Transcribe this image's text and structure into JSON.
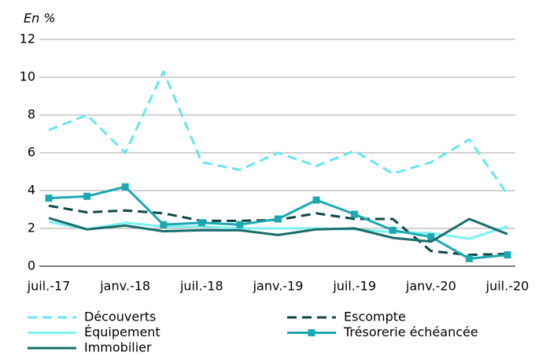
{
  "chart_data": {
    "type": "line",
    "unit_label": "En %",
    "categories": [
      "juil.-17",
      null,
      "janv.-18",
      null,
      "juil.-18",
      null,
      "janv.-19",
      null,
      "juil.-19",
      null,
      "janv.-20",
      null,
      "juil.-20"
    ],
    "series": [
      {
        "name": "Découverts",
        "color": "#66e6ef",
        "dash": true,
        "values": [
          7.2,
          8.0,
          6.0,
          10.3,
          5.5,
          5.1,
          6.0,
          5.3,
          6.1,
          4.9,
          5.5,
          6.7,
          3.8
        ]
      },
      {
        "name": "Escompte",
        "color": "#0f4747",
        "dash": true,
        "values": [
          3.2,
          2.85,
          2.95,
          2.8,
          2.4,
          2.4,
          2.45,
          2.8,
          2.5,
          2.5,
          0.8,
          0.6,
          0.65
        ]
      },
      {
        "name": "Équipement",
        "color": "#7df2f2",
        "values": [
          2.35,
          1.95,
          2.3,
          2.1,
          2.1,
          2.0,
          2.0,
          2.0,
          1.95,
          1.8,
          1.75,
          1.45,
          2.1
        ]
      },
      {
        "name": "Trésorerie échéancée",
        "color": "#1ba8b0",
        "marker": "square",
        "values": [
          3.6,
          3.7,
          4.2,
          2.2,
          2.3,
          2.2,
          2.5,
          3.5,
          2.75,
          1.9,
          1.55,
          0.4,
          0.6
        ]
      },
      {
        "name": "Immobilier",
        "color": "#1a6d6d",
        "values": [
          2.55,
          1.95,
          2.15,
          1.85,
          1.9,
          1.9,
          1.65,
          1.95,
          2.0,
          1.5,
          1.3,
          2.5,
          1.7
        ]
      }
    ],
    "ylim": [
      0,
      12
    ],
    "yticks": [
      0,
      2,
      4,
      6,
      8,
      10,
      12
    ],
    "grid": true
  }
}
